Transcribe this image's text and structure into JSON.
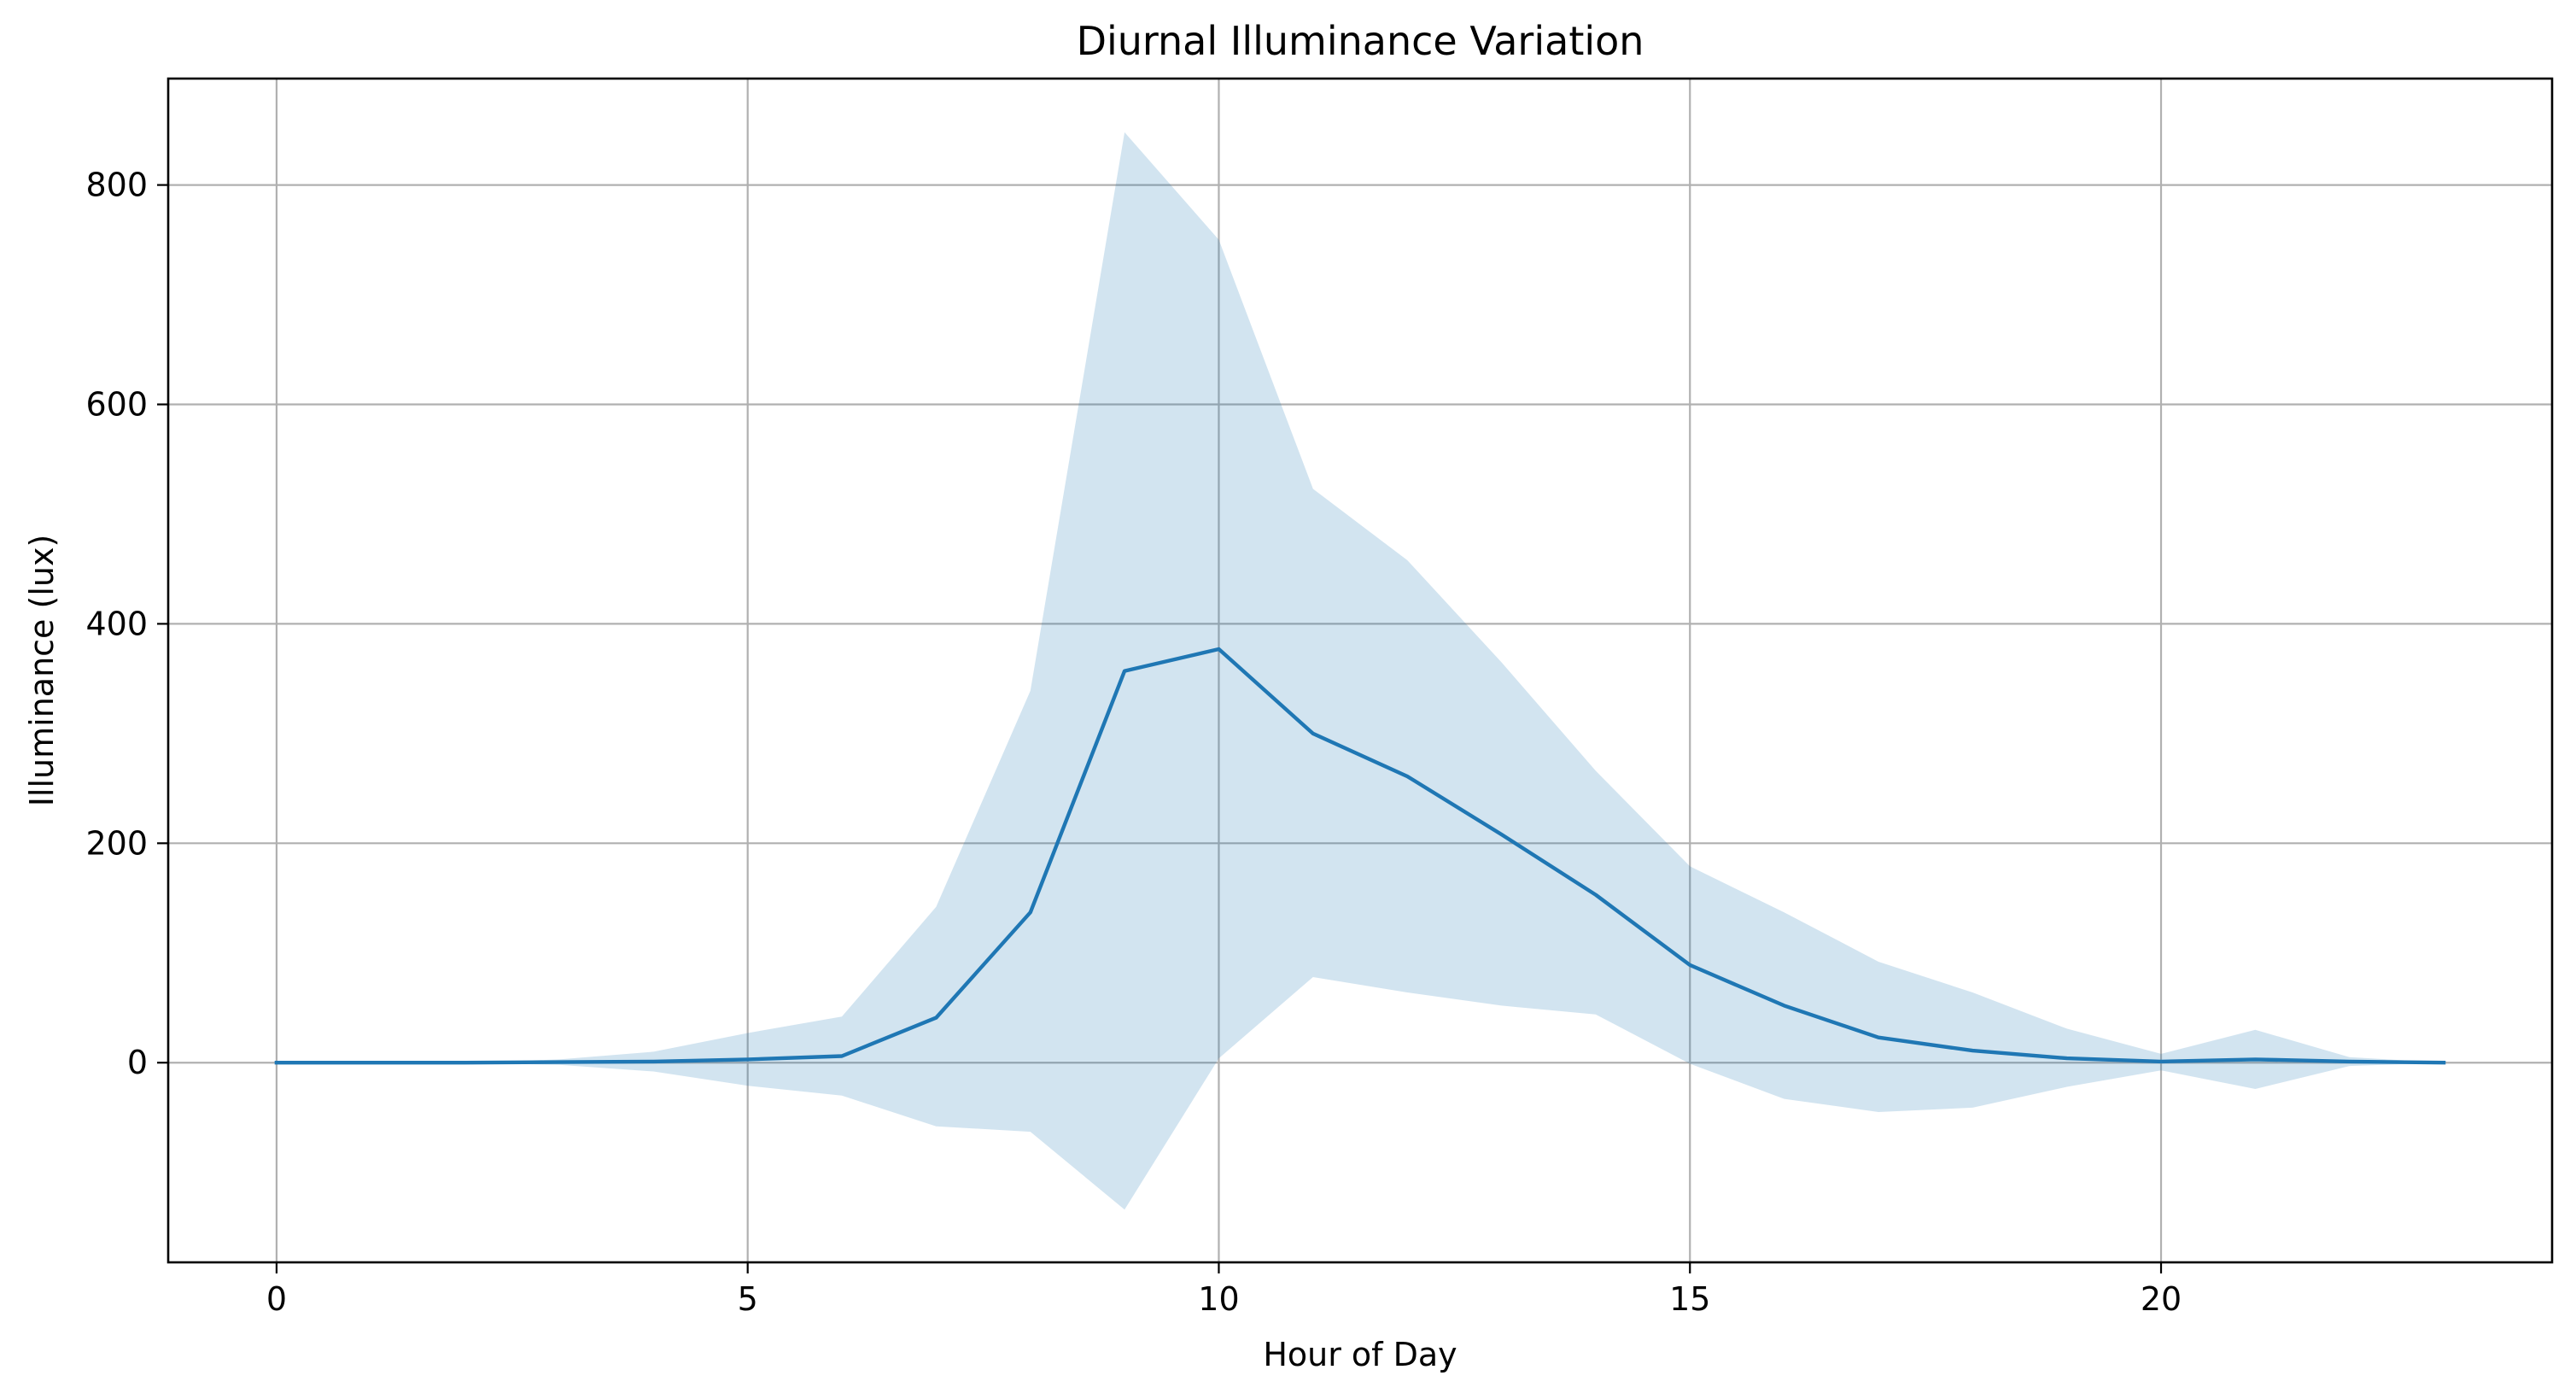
{
  "chart_data": {
    "type": "line",
    "title": "Diurnal Illuminance Variation",
    "xlabel": "Hour of Day",
    "ylabel": "Illuminance (lux)",
    "xlim": [
      -1.15,
      24.15
    ],
    "ylim": [
      -182,
      897
    ],
    "xticks": [
      0,
      5,
      10,
      15,
      20
    ],
    "yticks": [
      0,
      200,
      400,
      600,
      800
    ],
    "grid": true,
    "legend": "none",
    "line_color": "#1f77b4",
    "band_color": "#1f77b4",
    "band_opacity": 0.2,
    "x": [
      0,
      1,
      2,
      3,
      4,
      5,
      6,
      7,
      8,
      9,
      10,
      11,
      12,
      13,
      14,
      15,
      16,
      17,
      18,
      19,
      20,
      21,
      22,
      23
    ],
    "series": [
      {
        "values": [
          0,
          0,
          0,
          0.5,
          1,
          3,
          6,
          41,
          137,
          357,
          377,
          300,
          261,
          208,
          153,
          89,
          52,
          23,
          11,
          4,
          1,
          3,
          1,
          0
        ],
        "lower": [
          0,
          0,
          0,
          -2,
          -8,
          -21,
          -30,
          -58,
          -63,
          -134,
          4,
          78,
          64,
          52,
          44,
          -1,
          -33,
          -45,
          -41,
          -22,
          -7,
          -24,
          -3,
          0
        ],
        "upper": [
          0,
          0,
          0,
          3,
          10,
          27,
          42,
          142,
          339,
          848,
          750,
          523,
          458,
          365,
          266,
          179,
          137,
          92,
          64,
          31,
          8,
          30,
          5,
          0
        ]
      }
    ]
  }
}
